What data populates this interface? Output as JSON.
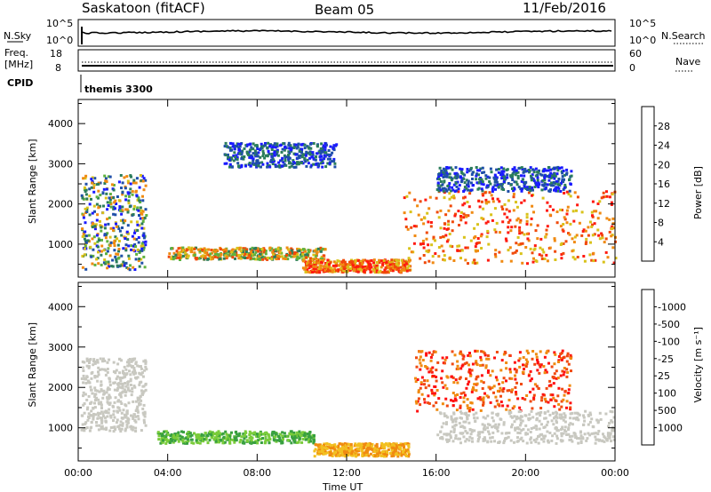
{
  "header": {
    "station": "Saskatoon (fitACF)",
    "beam": "Beam 05",
    "date": "11/Feb/2016"
  },
  "aux_panels": {
    "nsky_label": "N.Sky",
    "nsearch_label": "N.Search",
    "nsky_ticks": [
      "10^5",
      "10^0"
    ],
    "nsearch_ticks": [
      "10^5",
      "10^0"
    ],
    "freq_label_1": "Freq.",
    "freq_label_2": "[MHz]",
    "freq_ticks": [
      "18",
      "8"
    ],
    "nave_label": "Nave",
    "nave_ticks": [
      "60",
      "0"
    ],
    "cpid_label": "CPID",
    "cpid_value": "themis 3300"
  },
  "chart_data": [
    {
      "type": "heatmap",
      "title": "",
      "xlabel": "Time UT",
      "ylabel": "Slant Range [km]",
      "x_ticks": [
        "00:00",
        "04:00",
        "08:00",
        "12:00",
        "16:00",
        "20:00",
        "00:00"
      ],
      "y_ticks": [
        1000,
        2000,
        3000,
        4000
      ],
      "xlim_hours": [
        0,
        24
      ],
      "ylim_km": [
        180,
        4600
      ],
      "colorbar": {
        "label": "Power [dB]",
        "tick_labels": [
          "4",
          "8",
          "12",
          "16",
          "20",
          "24",
          "28"
        ],
        "colors": [
          "#1a1aff",
          "#1f4fa8",
          "#2b7d5b",
          "#5fb23f",
          "#d9c21a",
          "#f08a12",
          "#f04a0a",
          "#ff1a10"
        ]
      },
      "regions": [
        {
          "t": [
            0.1,
            3.0
          ],
          "r": [
            350,
            2700
          ],
          "level": "mixed-low"
        },
        {
          "t": [
            4.0,
            11.0
          ],
          "r": [
            600,
            900
          ],
          "level": "medium-high"
        },
        {
          "t": [
            6.5,
            11.5
          ],
          "r": [
            2900,
            3500
          ],
          "level": "low"
        },
        {
          "t": [
            10.0,
            14.8
          ],
          "r": [
            280,
            600
          ],
          "level": "high"
        },
        {
          "t": [
            14.5,
            24.0
          ],
          "r": [
            500,
            2300
          ],
          "level": "high"
        },
        {
          "t": [
            16.0,
            22.0
          ],
          "r": [
            2300,
            2900
          ],
          "level": "low"
        }
      ]
    },
    {
      "type": "heatmap",
      "title": "",
      "xlabel": "Time UT",
      "ylabel": "Slant Range [km]",
      "x_ticks": [
        "00:00",
        "04:00",
        "08:00",
        "12:00",
        "16:00",
        "20:00",
        "00:00"
      ],
      "y_ticks": [
        1000,
        2000,
        3000,
        4000
      ],
      "xlim_hours": [
        0,
        24
      ],
      "ylim_km": [
        180,
        4600
      ],
      "colorbar": {
        "label": "Velocity [m s⁻¹]",
        "tick_labels": [
          "1000",
          "500",
          "100",
          "25",
          "-25",
          "-100",
          "-500",
          "-1000"
        ],
        "colors": [
          "#1a2ccc",
          "#2a6f7a",
          "#38a040",
          "#7acc3a",
          "#c8c8c0",
          "#f2c020",
          "#f08a10",
          "#f04a10",
          "#ff1010"
        ]
      },
      "regions": [
        {
          "t": [
            0.1,
            3.0
          ],
          "r": [
            900,
            2700
          ],
          "velocity": "grey (~0)"
        },
        {
          "t": [
            3.5,
            10.5
          ],
          "r": [
            600,
            900
          ],
          "velocity": "positive (green)"
        },
        {
          "t": [
            10.5,
            14.8
          ],
          "r": [
            280,
            600
          ],
          "velocity": "negative (yellow-orange)"
        },
        {
          "t": [
            15.0,
            22.0
          ],
          "r": [
            1400,
            2900
          ],
          "velocity": "negative (orange-red)"
        },
        {
          "t": [
            16.0,
            24.0
          ],
          "r": [
            600,
            1400
          ],
          "velocity": "grey (~0)"
        }
      ]
    }
  ]
}
